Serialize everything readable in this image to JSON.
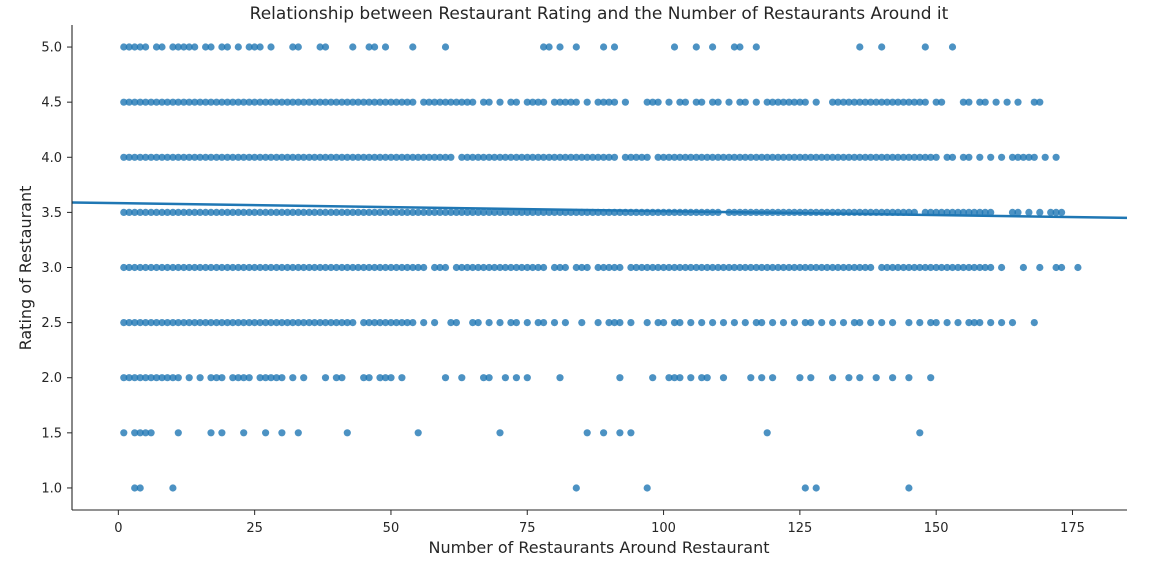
{
  "chart_data": {
    "type": "scatter",
    "title": "Relationship between Restaurant Rating and the Number of Restaurants Around it",
    "xlabel": "Number of Restaurants Around Restaurant",
    "ylabel": "Rating of Restaurant",
    "xlim": [
      -8.5,
      185
    ],
    "ylim": [
      0.8,
      5.2
    ],
    "xticks": [
      0,
      25,
      50,
      75,
      100,
      125,
      150,
      175
    ],
    "xtick_labels": [
      "0",
      "25",
      "50",
      "75",
      "100",
      "125",
      "150",
      "175"
    ],
    "yticks": [
      1.0,
      1.5,
      2.0,
      2.5,
      3.0,
      3.5,
      4.0,
      4.5,
      5.0
    ],
    "ytick_labels": [
      "1.0",
      "1.5",
      "2.0",
      "2.5",
      "3.0",
      "3.5",
      "4.0",
      "4.5",
      "5.0"
    ],
    "grid": false,
    "point_color": "#1f77b4",
    "line_color": "#1f77b4",
    "regression_line": {
      "x": [
        -8.5,
        185
      ],
      "y": [
        3.59,
        3.45
      ]
    },
    "points": [
      {
        "rating": 1.0,
        "x": [
          3,
          4,
          10,
          84,
          97,
          126,
          128,
          145
        ]
      },
      {
        "rating": 1.5,
        "x": [
          1,
          3,
          4,
          5,
          6,
          11,
          17,
          19,
          23,
          27,
          30,
          33,
          42,
          55,
          70,
          86,
          89,
          92,
          94,
          119,
          147
        ]
      },
      {
        "rating": 2.0,
        "x": [
          1,
          2,
          3,
          4,
          5,
          6,
          7,
          8,
          9,
          10,
          11,
          13,
          15,
          17,
          18,
          19,
          21,
          22,
          23,
          24,
          26,
          27,
          28,
          29,
          30,
          32,
          34,
          38,
          40,
          41,
          45,
          46,
          48,
          49,
          50,
          52,
          60,
          63,
          67,
          68,
          71,
          73,
          75,
          81,
          92,
          98,
          101,
          102,
          103,
          105,
          107,
          108,
          111,
          116,
          118,
          120,
          125,
          127,
          131,
          134,
          136,
          139,
          142,
          145,
          149
        ]
      },
      {
        "rating": 2.5,
        "x": [
          1,
          2,
          3,
          4,
          5,
          6,
          7,
          8,
          9,
          10,
          11,
          12,
          13,
          14,
          15,
          16,
          17,
          18,
          19,
          20,
          21,
          22,
          23,
          24,
          25,
          26,
          27,
          28,
          29,
          30,
          31,
          32,
          33,
          34,
          35,
          36,
          37,
          38,
          39,
          40,
          41,
          42,
          43,
          45,
          46,
          47,
          48,
          49,
          50,
          51,
          52,
          53,
          54,
          56,
          58,
          61,
          62,
          65,
          66,
          68,
          70,
          72,
          73,
          75,
          77,
          78,
          80,
          82,
          85,
          88,
          90,
          91,
          92,
          94,
          97,
          99,
          100,
          102,
          103,
          105,
          107,
          109,
          111,
          113,
          115,
          117,
          118,
          120,
          122,
          124,
          126,
          127,
          129,
          131,
          133,
          135,
          136,
          138,
          140,
          142,
          145,
          147,
          149,
          150,
          152,
          154,
          156,
          157,
          158,
          160,
          162,
          164,
          168
        ]
      },
      {
        "rating": 3.0,
        "x": [
          1,
          2,
          3,
          4,
          5,
          6,
          7,
          8,
          9,
          10,
          11,
          12,
          13,
          14,
          15,
          16,
          17,
          18,
          19,
          20,
          21,
          22,
          23,
          24,
          25,
          26,
          27,
          28,
          29,
          30,
          31,
          32,
          33,
          34,
          35,
          36,
          37,
          38,
          39,
          40,
          41,
          42,
          43,
          44,
          45,
          46,
          47,
          48,
          49,
          50,
          51,
          52,
          53,
          54,
          55,
          56,
          58,
          59,
          60,
          62,
          63,
          64,
          65,
          66,
          67,
          68,
          69,
          70,
          71,
          72,
          73,
          74,
          75,
          76,
          77,
          78,
          80,
          81,
          82,
          84,
          85,
          86,
          88,
          89,
          90,
          91,
          92,
          94,
          95,
          96,
          97,
          98,
          99,
          100,
          101,
          102,
          103,
          104,
          105,
          106,
          107,
          108,
          109,
          110,
          111,
          112,
          113,
          114,
          115,
          116,
          117,
          118,
          119,
          120,
          121,
          122,
          123,
          124,
          125,
          126,
          127,
          128,
          129,
          130,
          131,
          132,
          133,
          134,
          135,
          136,
          137,
          138,
          140,
          141,
          142,
          143,
          144,
          145,
          146,
          147,
          148,
          149,
          150,
          151,
          152,
          153,
          154,
          155,
          156,
          157,
          158,
          159,
          160,
          162,
          166,
          169,
          172,
          173,
          176
        ]
      },
      {
        "rating": 3.5,
        "x": [
          1,
          2,
          3,
          4,
          5,
          6,
          7,
          8,
          9,
          10,
          11,
          12,
          13,
          14,
          15,
          16,
          17,
          18,
          19,
          20,
          21,
          22,
          23,
          24,
          25,
          26,
          27,
          28,
          29,
          30,
          31,
          32,
          33,
          34,
          35,
          36,
          37,
          38,
          39,
          40,
          41,
          42,
          43,
          44,
          45,
          46,
          47,
          48,
          49,
          50,
          51,
          52,
          53,
          54,
          55,
          56,
          57,
          58,
          59,
          60,
          61,
          62,
          63,
          64,
          65,
          66,
          67,
          68,
          69,
          70,
          71,
          72,
          73,
          74,
          75,
          76,
          77,
          78,
          79,
          80,
          81,
          82,
          83,
          84,
          85,
          86,
          87,
          88,
          89,
          90,
          91,
          92,
          93,
          94,
          95,
          96,
          97,
          98,
          99,
          100,
          101,
          102,
          103,
          104,
          105,
          106,
          107,
          108,
          109,
          110,
          112,
          113,
          114,
          115,
          116,
          117,
          118,
          119,
          120,
          121,
          122,
          123,
          124,
          125,
          126,
          127,
          128,
          129,
          130,
          131,
          132,
          133,
          134,
          135,
          136,
          137,
          138,
          139,
          140,
          141,
          142,
          143,
          144,
          145,
          146,
          148,
          149,
          150,
          151,
          152,
          153,
          154,
          155,
          156,
          157,
          158,
          159,
          160,
          164,
          165,
          167,
          169,
          171,
          172,
          173
        ]
      },
      {
        "rating": 4.0,
        "x": [
          1,
          2,
          3,
          4,
          5,
          6,
          7,
          8,
          9,
          10,
          11,
          12,
          13,
          14,
          15,
          16,
          17,
          18,
          19,
          20,
          21,
          22,
          23,
          24,
          25,
          26,
          27,
          28,
          29,
          30,
          31,
          32,
          33,
          34,
          35,
          36,
          37,
          38,
          39,
          40,
          41,
          42,
          43,
          44,
          45,
          46,
          47,
          48,
          49,
          50,
          51,
          52,
          53,
          54,
          55,
          56,
          57,
          58,
          59,
          60,
          61,
          63,
          64,
          65,
          66,
          67,
          68,
          69,
          70,
          71,
          72,
          73,
          74,
          75,
          76,
          77,
          78,
          79,
          80,
          81,
          82,
          83,
          84,
          85,
          86,
          87,
          88,
          89,
          90,
          91,
          93,
          94,
          95,
          96,
          97,
          99,
          100,
          101,
          102,
          103,
          104,
          105,
          106,
          107,
          108,
          109,
          110,
          111,
          112,
          113,
          114,
          115,
          116,
          117,
          118,
          119,
          120,
          121,
          122,
          123,
          124,
          125,
          126,
          127,
          128,
          129,
          130,
          131,
          132,
          133,
          134,
          135,
          136,
          137,
          138,
          139,
          140,
          141,
          142,
          143,
          144,
          145,
          146,
          147,
          148,
          149,
          150,
          152,
          153,
          155,
          156,
          158,
          160,
          162,
          164,
          165,
          166,
          167,
          168,
          170,
          172
        ]
      },
      {
        "rating": 4.5,
        "x": [
          1,
          2,
          3,
          4,
          5,
          6,
          7,
          8,
          9,
          10,
          11,
          12,
          13,
          14,
          15,
          16,
          17,
          18,
          19,
          20,
          21,
          22,
          23,
          24,
          25,
          26,
          27,
          28,
          29,
          30,
          31,
          32,
          33,
          34,
          35,
          36,
          37,
          38,
          39,
          40,
          41,
          42,
          43,
          44,
          45,
          46,
          47,
          48,
          49,
          50,
          51,
          52,
          53,
          54,
          56,
          57,
          58,
          59,
          60,
          61,
          62,
          63,
          64,
          65,
          67,
          68,
          70,
          72,
          73,
          75,
          76,
          77,
          78,
          80,
          81,
          82,
          83,
          84,
          86,
          88,
          89,
          90,
          91,
          93,
          97,
          98,
          99,
          101,
          103,
          104,
          106,
          107,
          109,
          110,
          112,
          114,
          115,
          117,
          119,
          120,
          121,
          122,
          123,
          124,
          125,
          126,
          128,
          131,
          132,
          133,
          134,
          135,
          136,
          137,
          138,
          139,
          140,
          141,
          142,
          143,
          144,
          145,
          146,
          147,
          148,
          150,
          151,
          155,
          156,
          158,
          159,
          161,
          163,
          165,
          168,
          169
        ]
      },
      {
        "rating": 5.0,
        "x": [
          1,
          2,
          3,
          4,
          5,
          7,
          8,
          10,
          11,
          12,
          13,
          14,
          16,
          17,
          19,
          20,
          22,
          24,
          25,
          26,
          28,
          32,
          33,
          37,
          38,
          43,
          46,
          47,
          49,
          54,
          60,
          78,
          79,
          81,
          84,
          89,
          91,
          102,
          106,
          109,
          113,
          114,
          117,
          136,
          140,
          148,
          153
        ]
      }
    ]
  }
}
